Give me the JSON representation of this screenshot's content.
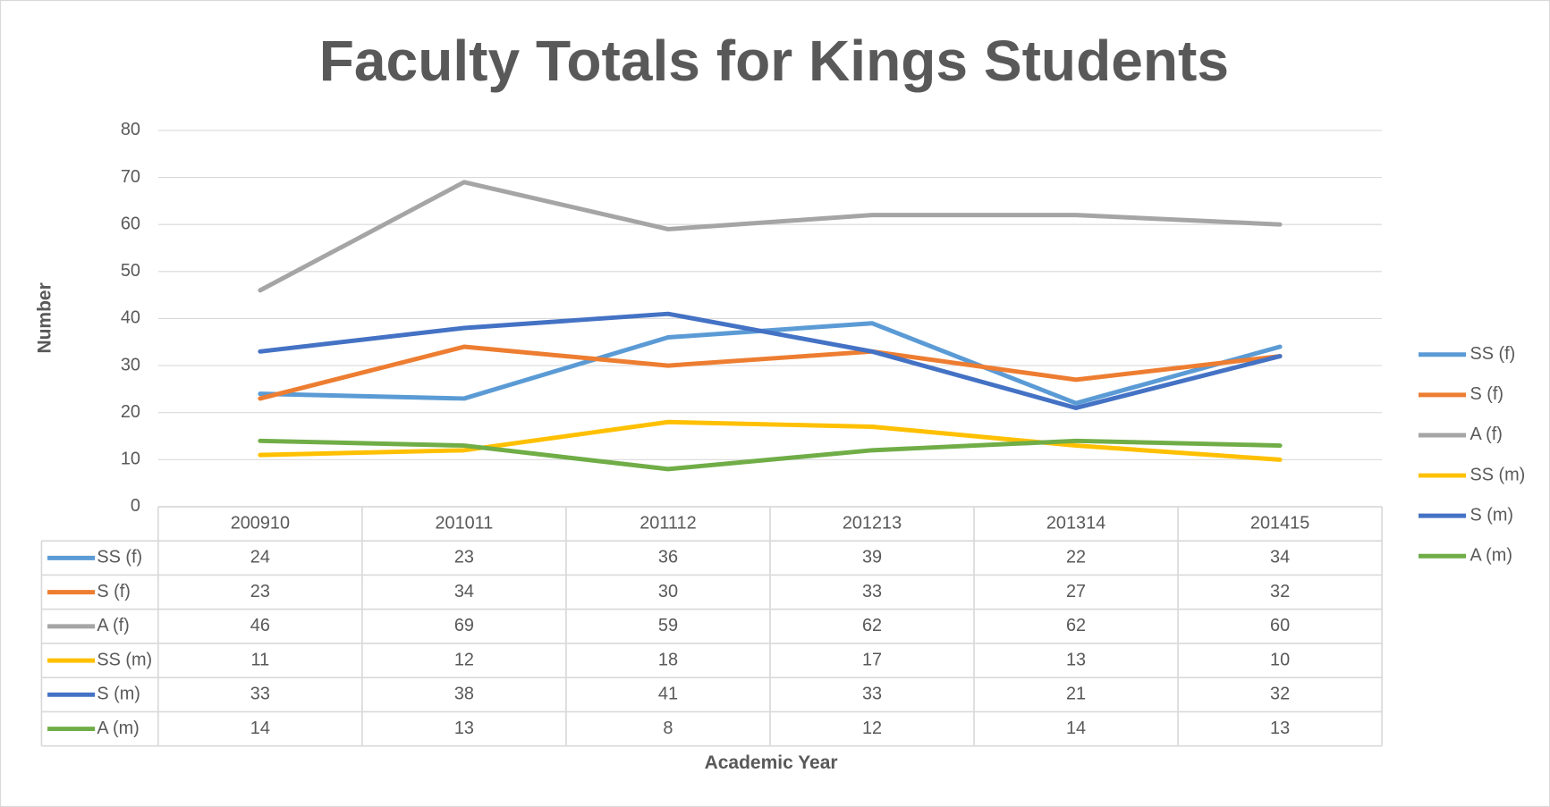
{
  "chart_data": {
    "type": "line",
    "title": "Faculty Totals for Kings Students",
    "x_label": "Academic Year",
    "y_label": "Number",
    "categories": [
      "200910",
      "201011",
      "201112",
      "201213",
      "201314",
      "201415"
    ],
    "series": [
      {
        "name": "SS (f)",
        "color": "#5b9bd5",
        "values": [
          24,
          23,
          36,
          39,
          22,
          34
        ]
      },
      {
        "name": "S (f)",
        "color": "#ed7d31",
        "values": [
          23,
          34,
          30,
          33,
          27,
          32
        ]
      },
      {
        "name": "A (f)",
        "color": "#a5a5a5",
        "values": [
          46,
          69,
          59,
          62,
          62,
          60
        ]
      },
      {
        "name": "SS (m)",
        "color": "#ffc000",
        "values": [
          11,
          12,
          18,
          17,
          13,
          10
        ]
      },
      {
        "name": "S (m)",
        "color": "#4472c4",
        "values": [
          33,
          38,
          41,
          33,
          21,
          32
        ]
      },
      {
        "name": "A (m)",
        "color": "#70ad47",
        "values": [
          14,
          13,
          8,
          12,
          14,
          13
        ]
      }
    ],
    "ylim": [
      0,
      80
    ],
    "yticks": [
      0,
      10,
      20,
      30,
      40,
      50,
      60,
      70,
      80
    ],
    "grid": true,
    "legend": "right"
  }
}
